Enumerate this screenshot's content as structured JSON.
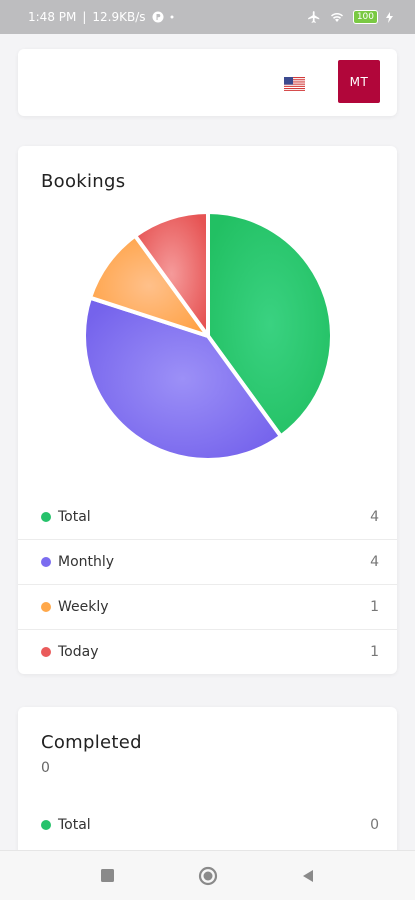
{
  "status_bar": {
    "time": "1:48 PM",
    "speed": "12.9KB/s",
    "battery": "100"
  },
  "header": {
    "flag_icon": "us-flag-icon",
    "avatar_initials": "MT",
    "avatar_color": "#b1063a"
  },
  "bookings": {
    "title": "Bookings",
    "chart_data": {
      "type": "pie",
      "categories": [
        "Total",
        "Monthly",
        "Weekly",
        "Today"
      ],
      "values": [
        4,
        4,
        1,
        1
      ],
      "colors": [
        "#26c26b",
        "#8473ee",
        "#ffa84a",
        "#ea5b5b"
      ]
    },
    "legend": [
      {
        "label": "Total",
        "value": "4",
        "color": "#26c26b"
      },
      {
        "label": "Monthly",
        "value": "4",
        "color": "#7b6cf0"
      },
      {
        "label": "Weekly",
        "value": "1",
        "color": "#ffa84a"
      },
      {
        "label": "Today",
        "value": "1",
        "color": "#ea5b5b"
      }
    ]
  },
  "completed": {
    "title": "Completed",
    "count": "0",
    "legend": [
      {
        "label": "Total",
        "value": "0",
        "color": "#26c26b"
      }
    ]
  },
  "nav_bar": {
    "icons": [
      "recent-apps-icon",
      "home-icon",
      "back-icon"
    ]
  }
}
